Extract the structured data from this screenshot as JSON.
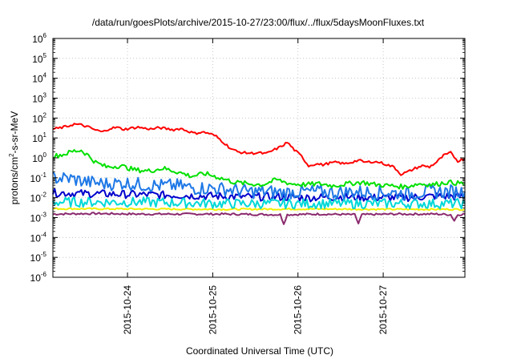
{
  "chart_data": {
    "type": "line",
    "title": "/data/run/goesPlots/archive/2015-10-27/23:00/flux/../flux/5daysMoonFluxes.txt",
    "xlabel": "Coordinated Universal Time (UTC)",
    "ylabel": {
      "base": "protons/cm",
      "sup": "2",
      "rest": "-s-sr-MeV"
    },
    "y_scale": "log",
    "ylim": [
      1e-06,
      1000000.0
    ],
    "y_ticks": [
      {
        "base": "10",
        "exp": "-6",
        "value": 1e-06
      },
      {
        "base": "10",
        "exp": "-5",
        "value": 1e-05
      },
      {
        "base": "10",
        "exp": "-4",
        "value": 0.0001
      },
      {
        "base": "10",
        "exp": "-3",
        "value": 0.001
      },
      {
        "base": "10",
        "exp": "-2",
        "value": 0.01
      },
      {
        "base": "10",
        "exp": "-1",
        "value": 0.1
      },
      {
        "base": "10",
        "exp": "0",
        "value": 1
      },
      {
        "base": "10",
        "exp": "1",
        "value": 10
      },
      {
        "base": "10",
        "exp": "2",
        "value": 100
      },
      {
        "base": "10",
        "exp": "3",
        "value": 1000
      },
      {
        "base": "10",
        "exp": "4",
        "value": 10000
      },
      {
        "base": "10",
        "exp": "5",
        "value": 100000
      },
      {
        "base": "10",
        "exp": "6",
        "value": 1000000
      }
    ],
    "xlim": [
      "2015-10-23T03:00",
      "2015-10-27T23:00"
    ],
    "x_ticks": [
      "2015-10-24",
      "2015-10-25",
      "2015-10-26",
      "2015-10-27"
    ],
    "grid": true,
    "legend": "none",
    "series": [
      {
        "color": "#ff0000",
        "points": [
          [
            "2015-10-23T03:00",
            28
          ],
          [
            "2015-10-23T05:00",
            32
          ],
          [
            "2015-10-23T07:00",
            38
          ],
          [
            "2015-10-23T09:00",
            50
          ],
          [
            "2015-10-23T11:00",
            45
          ],
          [
            "2015-10-23T13:00",
            35
          ],
          [
            "2015-10-23T15:00",
            25
          ],
          [
            "2015-10-23T17:00",
            20
          ],
          [
            "2015-10-23T19:00",
            30
          ],
          [
            "2015-10-23T21:00",
            34
          ],
          [
            "2015-10-23T23:00",
            27
          ],
          [
            "2015-10-24T01:00",
            31
          ],
          [
            "2015-10-24T03:00",
            35
          ],
          [
            "2015-10-24T05:00",
            30
          ],
          [
            "2015-10-24T07:00",
            28
          ],
          [
            "2015-10-24T09:00",
            33
          ],
          [
            "2015-10-24T11:00",
            29
          ],
          [
            "2015-10-24T13:00",
            26
          ],
          [
            "2015-10-24T15:00",
            30
          ],
          [
            "2015-10-24T17:00",
            22
          ],
          [
            "2015-10-24T19:00",
            17
          ],
          [
            "2015-10-24T21:00",
            20
          ],
          [
            "2015-10-24T23:00",
            17
          ],
          [
            "2015-10-25T01:00",
            12
          ],
          [
            "2015-10-25T03:00",
            6
          ],
          [
            "2015-10-25T05:00",
            3
          ],
          [
            "2015-10-25T07:00",
            2
          ],
          [
            "2015-10-25T09:00",
            1.8
          ],
          [
            "2015-10-25T11:00",
            1.7
          ],
          [
            "2015-10-25T13:00",
            1.8
          ],
          [
            "2015-10-25T15:00",
            1.6
          ],
          [
            "2015-10-25T17:00",
            2.4
          ],
          [
            "2015-10-25T19:00",
            3.5
          ],
          [
            "2015-10-25T21:00",
            6
          ],
          [
            "2015-10-25T23:00",
            2.5
          ],
          [
            "2015-10-26T01:00",
            1.2
          ],
          [
            "2015-10-26T03:00",
            0.4
          ],
          [
            "2015-10-26T05:00",
            0.5
          ],
          [
            "2015-10-26T07:00",
            0.45
          ],
          [
            "2015-10-26T09:00",
            0.55
          ],
          [
            "2015-10-26T11:00",
            0.6
          ],
          [
            "2015-10-26T13:00",
            0.5
          ],
          [
            "2015-10-26T15:00",
            0.6
          ],
          [
            "2015-10-26T17:00",
            0.75
          ],
          [
            "2015-10-26T19:00",
            0.6
          ],
          [
            "2015-10-26T21:00",
            0.65
          ],
          [
            "2015-10-26T23:00",
            0.6
          ],
          [
            "2015-10-27T01:00",
            0.45
          ],
          [
            "2015-10-27T03:00",
            0.35
          ],
          [
            "2015-10-27T05:00",
            0.15
          ],
          [
            "2015-10-27T07:00",
            0.2
          ],
          [
            "2015-10-27T09:00",
            0.3
          ],
          [
            "2015-10-27T11:00",
            0.4
          ],
          [
            "2015-10-27T13:00",
            0.35
          ],
          [
            "2015-10-27T15:00",
            0.6
          ],
          [
            "2015-10-27T17:00",
            1.3
          ],
          [
            "2015-10-27T19:00",
            1.8
          ],
          [
            "2015-10-27T21:00",
            0.7
          ],
          [
            "2015-10-27T23:00",
            0.9
          ]
        ]
      },
      {
        "color": "#00e000",
        "points": [
          [
            "2015-10-23T03:00",
            1.2
          ],
          [
            "2015-10-23T06:00",
            1.5
          ],
          [
            "2015-10-23T09:00",
            2.2
          ],
          [
            "2015-10-23T11:00",
            2.4
          ],
          [
            "2015-10-23T13:00",
            1.3
          ],
          [
            "2015-10-23T15:00",
            0.6
          ],
          [
            "2015-10-23T18:00",
            0.35
          ],
          [
            "2015-10-23T22:00",
            0.4
          ],
          [
            "2015-10-24T02:00",
            0.25
          ],
          [
            "2015-10-24T06:00",
            0.22
          ],
          [
            "2015-10-24T10:00",
            0.3
          ],
          [
            "2015-10-24T14:00",
            0.2
          ],
          [
            "2015-10-24T18:00",
            0.12
          ],
          [
            "2015-10-24T22:00",
            0.16
          ],
          [
            "2015-10-25T02:00",
            0.1
          ],
          [
            "2015-10-25T06:00",
            0.06
          ],
          [
            "2015-10-25T10:00",
            0.05
          ],
          [
            "2015-10-25T14:00",
            0.045
          ],
          [
            "2015-10-25T18:00",
            0.08
          ],
          [
            "2015-10-25T22:00",
            0.05
          ],
          [
            "2015-10-26T02:00",
            0.045
          ],
          [
            "2015-10-26T06:00",
            0.05
          ],
          [
            "2015-10-26T10:00",
            0.04
          ],
          [
            "2015-10-26T14:00",
            0.05
          ],
          [
            "2015-10-26T18:00",
            0.06
          ],
          [
            "2015-10-26T22:00",
            0.045
          ],
          [
            "2015-10-27T02:00",
            0.04
          ],
          [
            "2015-10-27T06:00",
            0.035
          ],
          [
            "2015-10-27T10:00",
            0.05
          ],
          [
            "2015-10-27T14:00",
            0.045
          ],
          [
            "2015-10-27T18:00",
            0.06
          ],
          [
            "2015-10-27T23:00",
            0.05
          ]
        ]
      },
      {
        "color": "#1e78e6",
        "points": [
          [
            "2015-10-23T03:00",
            0.1
          ],
          [
            "2015-10-23T08:00",
            0.09
          ],
          [
            "2015-10-23T13:00",
            0.06
          ],
          [
            "2015-10-23T18:00",
            0.05
          ],
          [
            "2015-10-23T23:00",
            0.055
          ],
          [
            "2015-10-24T04:00",
            0.045
          ],
          [
            "2015-10-24T09:00",
            0.04
          ],
          [
            "2015-10-24T14:00",
            0.04
          ],
          [
            "2015-10-24T19:00",
            0.03
          ],
          [
            "2015-10-25T00:00",
            0.03
          ],
          [
            "2015-10-25T05:00",
            0.025
          ],
          [
            "2015-10-25T10:00",
            0.02
          ],
          [
            "2015-10-25T15:00",
            0.02
          ],
          [
            "2015-10-25T20:00",
            0.018
          ],
          [
            "2015-10-26T01:00",
            0.02
          ],
          [
            "2015-10-26T06:00",
            0.02
          ],
          [
            "2015-10-26T11:00",
            0.018
          ],
          [
            "2015-10-26T16:00",
            0.02
          ],
          [
            "2015-10-26T21:00",
            0.018
          ],
          [
            "2015-10-27T02:00",
            0.018
          ],
          [
            "2015-10-27T07:00",
            0.015
          ],
          [
            "2015-10-27T12:00",
            0.02
          ],
          [
            "2015-10-27T17:00",
            0.02
          ],
          [
            "2015-10-27T23:00",
            0.02
          ]
        ]
      },
      {
        "color": "#00d8d8",
        "points": [
          [
            "2015-10-23T03:00",
            0.006
          ],
          [
            "2015-10-24T03:00",
            0.006
          ],
          [
            "2015-10-25T03:00",
            0.005
          ],
          [
            "2015-10-26T03:00",
            0.005
          ],
          [
            "2015-10-27T03:00",
            0.005
          ],
          [
            "2015-10-27T23:00",
            0.005
          ]
        ]
      },
      {
        "color": "#0000cc",
        "points": [
          [
            "2015-10-23T03:00",
            0.018
          ],
          [
            "2015-10-23T12:00",
            0.016
          ],
          [
            "2015-10-23T21:00",
            0.015
          ],
          [
            "2015-10-24T06:00",
            0.014
          ],
          [
            "2015-10-24T15:00",
            0.013
          ],
          [
            "2015-10-25T00:00",
            0.012
          ],
          [
            "2015-10-25T09:00",
            0.011
          ],
          [
            "2015-10-25T18:00",
            0.011
          ],
          [
            "2015-10-26T03:00",
            0.01
          ],
          [
            "2015-10-26T12:00",
            0.011
          ],
          [
            "2015-10-26T21:00",
            0.01
          ],
          [
            "2015-10-27T06:00",
            0.01
          ],
          [
            "2015-10-27T15:00",
            0.012
          ],
          [
            "2015-10-27T23:00",
            0.011
          ]
        ]
      },
      {
        "color": "#f0f000",
        "points": [
          [
            "2015-10-23T03:00",
            0.0028
          ],
          [
            "2015-10-24T03:00",
            0.0027
          ],
          [
            "2015-10-25T03:00",
            0.0026
          ],
          [
            "2015-10-26T03:00",
            0.0027
          ],
          [
            "2015-10-27T03:00",
            0.0026
          ],
          [
            "2015-10-27T23:00",
            0.0026
          ]
        ]
      },
      {
        "color": "#8b2a6e",
        "points": [
          [
            "2015-10-23T03:00",
            0.0015
          ],
          [
            "2015-10-23T15:00",
            0.0016
          ],
          [
            "2015-10-24T03:00",
            0.0015
          ],
          [
            "2015-10-24T15:00",
            0.0015
          ],
          [
            "2015-10-25T03:00",
            0.0015
          ],
          [
            "2015-10-25T19:00",
            0.0014
          ],
          [
            "2015-10-25T20:00",
            0.0005
          ],
          [
            "2015-10-25T21:00",
            0.0014
          ],
          [
            "2015-10-26T06:00",
            0.0015
          ],
          [
            "2015-10-26T16:00",
            0.0014
          ],
          [
            "2015-10-26T17:00",
            0.0005
          ],
          [
            "2015-10-26T18:00",
            0.0014
          ],
          [
            "2015-10-27T03:00",
            0.0015
          ],
          [
            "2015-10-27T15:00",
            0.0015
          ],
          [
            "2015-10-27T19:00",
            0.0014
          ],
          [
            "2015-10-27T20:00",
            0.0007
          ],
          [
            "2015-10-27T21:00",
            0.0014
          ],
          [
            "2015-10-27T23:00",
            0.0015
          ]
        ]
      }
    ]
  }
}
